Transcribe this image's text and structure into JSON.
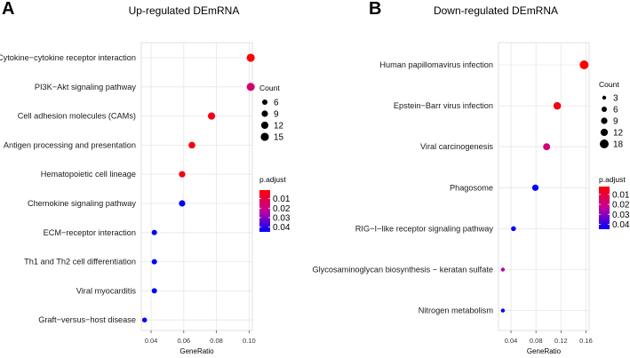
{
  "chart_data": [
    {
      "panel_label": "A",
      "type": "scatter",
      "title": "Up-regulated DEmRNA",
      "xlabel": "GeneRatio",
      "ylabel": "",
      "xlim": [
        0.034,
        0.102
      ],
      "xticks": [
        0.04,
        0.06,
        0.08,
        0.1
      ],
      "xtick_labels": [
        "0.04",
        "0.06",
        "0.08",
        "0.10"
      ],
      "grid": true,
      "categories": [
        "Cytokine−cytokine receptor interaction",
        "PI3K−Akt signaling pathway",
        "Cell adhesion molecules (CAMs)",
        "Antigen processing and presentation",
        "Hematopoietic cell lineage",
        "Chemokine signaling pathway",
        "ECM−receptor interaction",
        "Th1 and Th2 cell differentiation",
        "Viral myocarditis",
        "Graft−versus−host disease"
      ],
      "points": [
        {
          "category": "Cytokine−cytokine receptor interaction",
          "gene_ratio": 0.101,
          "count": 15,
          "p_adjust": 0.001
        },
        {
          "category": "PI3K−Akt signaling pathway",
          "gene_ratio": 0.101,
          "count": 15,
          "p_adjust": 0.017
        },
        {
          "category": "Cell adhesion molecules (CAMs)",
          "gene_ratio": 0.077,
          "count": 12,
          "p_adjust": 0.004
        },
        {
          "category": "Antigen processing and presentation",
          "gene_ratio": 0.065,
          "count": 10,
          "p_adjust": 0.003
        },
        {
          "category": "Hematopoietic cell lineage",
          "gene_ratio": 0.059,
          "count": 9,
          "p_adjust": 0.004
        },
        {
          "category": "Chemokine signaling pathway",
          "gene_ratio": 0.059,
          "count": 9,
          "p_adjust": 0.045
        },
        {
          "category": "ECM−receptor interaction",
          "gene_ratio": 0.042,
          "count": 6,
          "p_adjust": 0.045
        },
        {
          "category": "Th1 and Th2 cell differentiation",
          "gene_ratio": 0.042,
          "count": 6,
          "p_adjust": 0.045
        },
        {
          "category": "Viral myocarditis",
          "gene_ratio": 0.042,
          "count": 6,
          "p_adjust": 0.045
        },
        {
          "category": "Graft−versus−host disease",
          "gene_ratio": 0.036,
          "count": 5,
          "p_adjust": 0.045
        }
      ],
      "size_legend": {
        "title": "Count",
        "values": [
          6,
          9,
          12,
          15
        ],
        "labels": [
          "6",
          "9",
          "12",
          "15"
        ]
      },
      "color_legend": {
        "title": "p.adjust",
        "min": 0.001,
        "max": 0.045,
        "ticks": [
          0.01,
          0.02,
          0.03,
          0.04
        ],
        "labels": [
          "0.01",
          "0.02",
          "0.03",
          "0.04"
        ],
        "low_color": "#ff0000",
        "high_color": "#0000ff"
      }
    },
    {
      "panel_label": "B",
      "type": "scatter",
      "title": "Down-regulated DEmRNA",
      "xlabel": "GeneRatio",
      "ylabel": "",
      "xlim": [
        0.02,
        0.165
      ],
      "xticks": [
        0.04,
        0.08,
        0.12,
        0.16
      ],
      "xtick_labels": [
        "0.04",
        "0.08",
        "0.12",
        "0.16"
      ],
      "grid": true,
      "categories": [
        "Human papillomavirus infection",
        "Epstein−Barr virus infection",
        "Viral carcinogenesis",
        "Phagosome",
        "RIG−I−like receptor signaling pathway",
        "Glycosaminoglycan biosynthesis − keratan sulfate",
        "Nitrogen metabolism"
      ],
      "points": [
        {
          "category": "Human papillomavirus infection",
          "gene_ratio": 0.157,
          "count": 18,
          "p_adjust": 0.002
        },
        {
          "category": "Epstein−Barr virus infection",
          "gene_ratio": 0.114,
          "count": 13,
          "p_adjust": 0.005
        },
        {
          "category": "Viral carcinogenesis",
          "gene_ratio": 0.097,
          "count": 11,
          "p_adjust": 0.018
        },
        {
          "category": "Phagosome",
          "gene_ratio": 0.079,
          "count": 9,
          "p_adjust": 0.045
        },
        {
          "category": "RIG−I−like receptor signaling pathway",
          "gene_ratio": 0.044,
          "count": 5,
          "p_adjust": 0.045
        },
        {
          "category": "Glycosaminoglycan biosynthesis − keratan sulfate",
          "gene_ratio": 0.027,
          "count": 3,
          "p_adjust": 0.024
        },
        {
          "category": "Nitrogen metabolism",
          "gene_ratio": 0.027,
          "count": 3,
          "p_adjust": 0.045
        }
      ],
      "size_legend": {
        "title": "Count",
        "values": [
          3,
          6,
          9,
          12,
          18
        ],
        "labels": [
          "3",
          "6",
          "9",
          "12",
          "18"
        ]
      },
      "color_legend": {
        "title": "p.adjust",
        "min": 0.002,
        "max": 0.045,
        "ticks": [
          0.01,
          0.02,
          0.03,
          0.04
        ],
        "labels": [
          "0.01",
          "0.02",
          "0.03",
          "0.04"
        ],
        "low_color": "#ff0000",
        "high_color": "#0000ff"
      }
    }
  ]
}
